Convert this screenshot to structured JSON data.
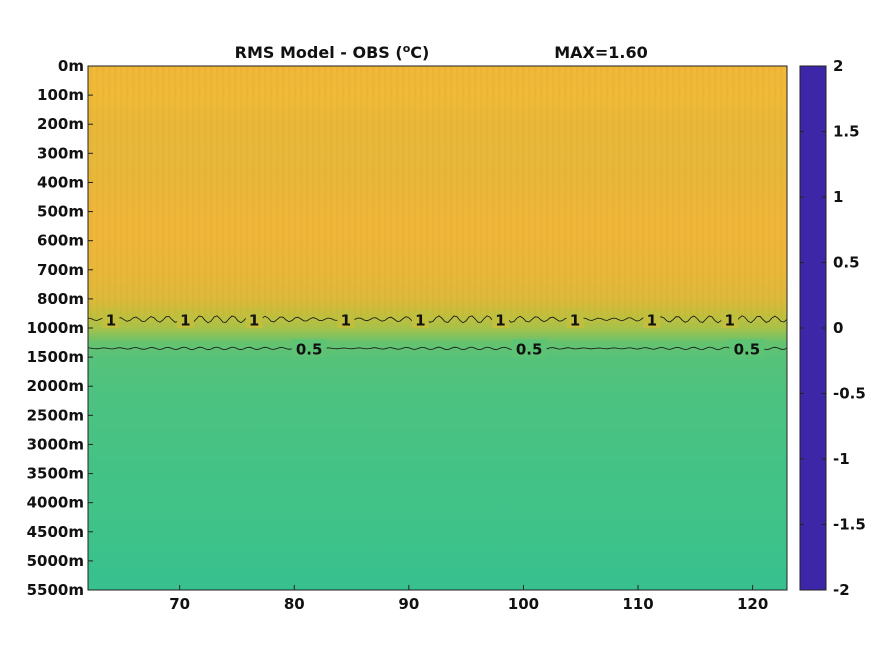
{
  "chart_data": {
    "type": "heatmap",
    "title": "RMS Model - OBS (",
    "title_sup": "o",
    "title_unit": "C)",
    "max_label": "MAX=1.60",
    "xticks": [
      70,
      80,
      90,
      100,
      110,
      120
    ],
    "xlim": [
      62,
      123
    ],
    "depth_ticks": [
      "0m",
      "100m",
      "200m",
      "300m",
      "400m",
      "500m",
      "600m",
      "700m",
      "800m",
      "1000m",
      "1500m",
      "2000m",
      "2500m",
      "3000m",
      "3500m",
      "4000m",
      "4500m",
      "5000m",
      "5500m"
    ],
    "depth_profile": [
      {
        "level": 0,
        "value": 1.35
      },
      {
        "level": 1,
        "value": 1.38
      },
      {
        "level": 2,
        "value": 1.3
      },
      {
        "level": 3,
        "value": 1.28
      },
      {
        "level": 4,
        "value": 1.3
      },
      {
        "level": 5,
        "value": 1.33
      },
      {
        "level": 6,
        "value": 1.33
      },
      {
        "level": 7,
        "value": 1.3
      },
      {
        "level": 8,
        "value": 1.22
      },
      {
        "level": 8.6,
        "value": 1.05
      },
      {
        "level": 9,
        "value": 0.9
      },
      {
        "level": 9.5,
        "value": 0.55
      },
      {
        "level": 10,
        "value": 0.47
      },
      {
        "level": 11,
        "value": 0.42
      },
      {
        "level": 12,
        "value": 0.4
      },
      {
        "level": 13,
        "value": 0.38
      },
      {
        "level": 14,
        "value": 0.36
      },
      {
        "level": 15,
        "value": 0.35
      },
      {
        "level": 16,
        "value": 0.33
      },
      {
        "level": 17,
        "value": 0.3
      },
      {
        "level": 18,
        "value": 0.27
      }
    ],
    "contours": [
      {
        "value": 1,
        "label": "1",
        "label_x": [
          64,
          70.5,
          76.5,
          84.5,
          91,
          98,
          104.5,
          111.2,
          118
        ]
      },
      {
        "value": 0.5,
        "label": "0.5",
        "label_x": [
          81.3,
          100.5,
          119.5
        ]
      }
    ],
    "colorbar": {
      "ticks": [
        "2",
        "1.5",
        "1",
        "0.5",
        "0",
        "-0.5",
        "-1",
        "-1.5",
        "-2"
      ],
      "min": -2,
      "max": 2,
      "colormap": [
        "#3e26a8",
        "#4344c6",
        "#4264f5",
        "#2f83f8",
        "#1c9ae3",
        "#06aec9",
        "#18bba8",
        "#3ec289",
        "#7cc361",
        "#b9c03e",
        "#f0b63a",
        "#fad22d",
        "#f9fb15"
      ]
    }
  }
}
